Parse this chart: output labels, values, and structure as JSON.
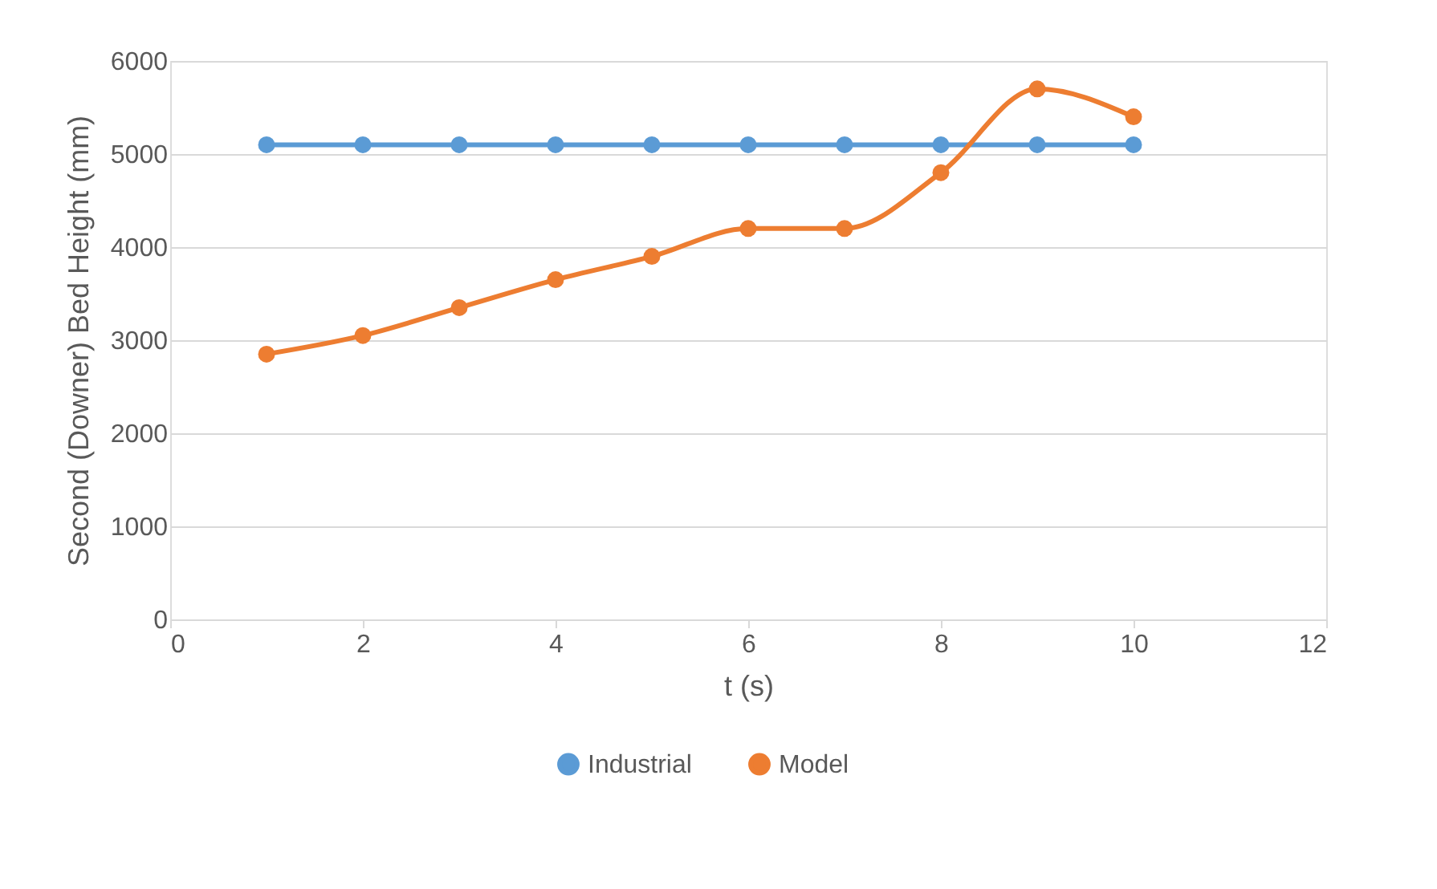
{
  "chart_data": {
    "type": "line",
    "xlabel": "t (s)",
    "ylabel": "Second (Downer) Bed Height (mm)",
    "x": [
      1,
      2,
      3,
      4,
      5,
      6,
      7,
      8,
      9,
      10
    ],
    "series": [
      {
        "name": "Industrial",
        "color": "#5b9bd5",
        "values": [
          5100,
          5100,
          5100,
          5100,
          5100,
          5100,
          5100,
          5100,
          5100,
          5100
        ]
      },
      {
        "name": "Model",
        "color": "#ed7d31",
        "values": [
          2850,
          3050,
          3350,
          3650,
          3900,
          4200,
          4200,
          4800,
          5700,
          5400
        ]
      }
    ],
    "xlim": [
      0,
      12
    ],
    "xticks": [
      0,
      2,
      4,
      6,
      8,
      10,
      12
    ],
    "ylim": [
      0,
      6000
    ],
    "yticks": [
      0,
      1000,
      2000,
      3000,
      4000,
      5000,
      6000
    ],
    "grid": "y",
    "legend": "bottom",
    "marker": "circle",
    "line_style": "solid"
  }
}
